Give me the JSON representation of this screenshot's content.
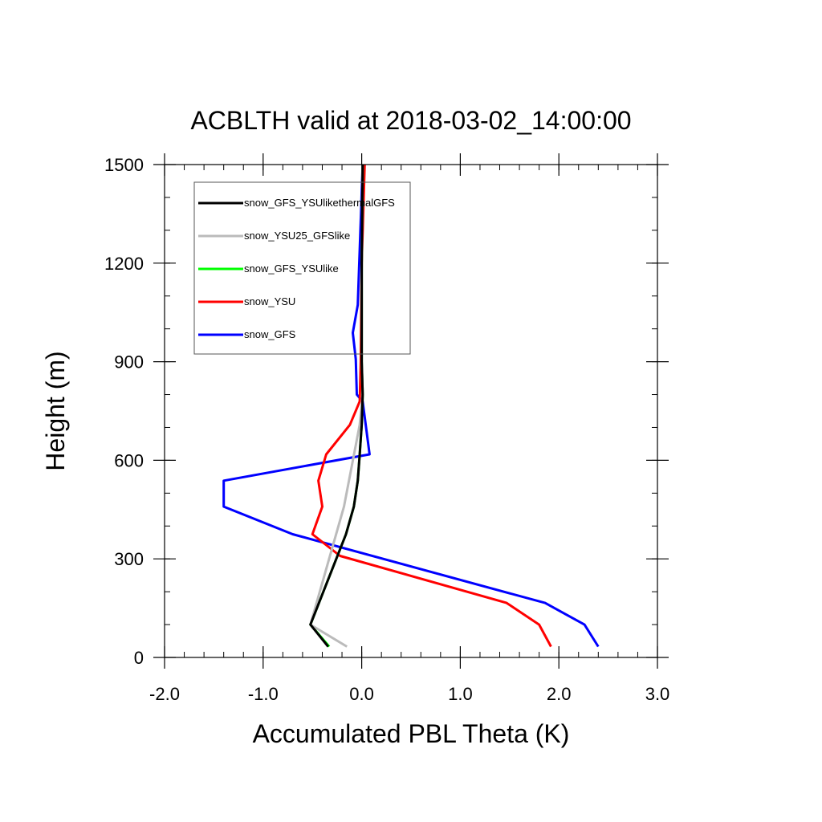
{
  "chart_data": {
    "type": "line",
    "title": "ACBLTH valid at 2018-03-02_14:00:00",
    "xlabel": "Accumulated PBL Theta (K)",
    "ylabel": "Height (m)",
    "xlim": [
      -2.0,
      3.0
    ],
    "ylim": [
      0,
      1500
    ],
    "x_ticks": [
      "-2.0",
      "-1.0",
      "0.0",
      "1.0",
      "2.0",
      "3.0"
    ],
    "y_ticks": [
      "0",
      "300",
      "600",
      "900",
      "1200",
      "1500"
    ],
    "legend_position": "top-left",
    "grid": false,
    "series": [
      {
        "name": "snow_GFS",
        "color": "#0000ff",
        "points": [
          [
            2.4,
            33
          ],
          [
            2.26,
            100
          ],
          [
            1.86,
            166
          ],
          [
            -0.7,
            375
          ],
          [
            -1.4,
            459
          ],
          [
            -1.4,
            538
          ],
          [
            0.08,
            618
          ],
          [
            0.01,
            779
          ],
          [
            -0.05,
            800
          ],
          [
            -0.06,
            908
          ],
          [
            -0.09,
            988
          ],
          [
            -0.04,
            1073
          ],
          [
            -0.02,
            1240
          ],
          [
            0.01,
            1500
          ]
        ]
      },
      {
        "name": "snow_YSU",
        "color": "#ff0000",
        "points": [
          [
            1.92,
            33
          ],
          [
            1.8,
            100
          ],
          [
            1.47,
            166
          ],
          [
            -0.22,
            309
          ],
          [
            -0.5,
            375
          ],
          [
            -0.4,
            459
          ],
          [
            -0.44,
            538
          ],
          [
            -0.36,
            618
          ],
          [
            -0.12,
            708
          ],
          [
            -0.02,
            779
          ],
          [
            -0.01,
            900
          ],
          [
            0.0,
            1200
          ],
          [
            0.03,
            1500
          ]
        ]
      },
      {
        "name": "snow_GFS_YSUlike",
        "color": "#00ff00",
        "points": [
          [
            -0.33,
            33
          ],
          [
            -0.52,
            100
          ],
          [
            -0.16,
            375
          ],
          [
            -0.08,
            459
          ],
          [
            -0.04,
            538
          ],
          [
            -0.02,
            618
          ],
          [
            0.0,
            708
          ],
          [
            0.01,
            800
          ],
          [
            0.0,
            900
          ],
          [
            0.0,
            1200
          ],
          [
            0.01,
            1500
          ]
        ]
      },
      {
        "name": "snow_YSU25_GFSlike",
        "color": "#bbbbbb",
        "points": [
          [
            -0.15,
            33
          ],
          [
            -0.52,
            100
          ],
          [
            -0.18,
            459
          ],
          [
            -0.02,
            708
          ],
          [
            0.01,
            800
          ],
          [
            0.0,
            900
          ],
          [
            0.0,
            1200
          ],
          [
            0.01,
            1500
          ]
        ]
      },
      {
        "name": "snow_GFS_YSUlikethermalGFS",
        "color": "#000000",
        "points": [
          [
            -0.34,
            33
          ],
          [
            -0.52,
            100
          ],
          [
            -0.16,
            375
          ],
          [
            -0.08,
            459
          ],
          [
            -0.04,
            538
          ],
          [
            -0.02,
            618
          ],
          [
            0.0,
            708
          ],
          [
            0.01,
            800
          ],
          [
            0.0,
            900
          ],
          [
            0.0,
            1200
          ],
          [
            0.01,
            1500
          ]
        ]
      }
    ],
    "legend_order": [
      "snow_GFS_YSUlikethermalGFS",
      "snow_YSU25_GFSlike",
      "snow_GFS_YSUlike",
      "snow_YSU",
      "snow_GFS"
    ]
  }
}
